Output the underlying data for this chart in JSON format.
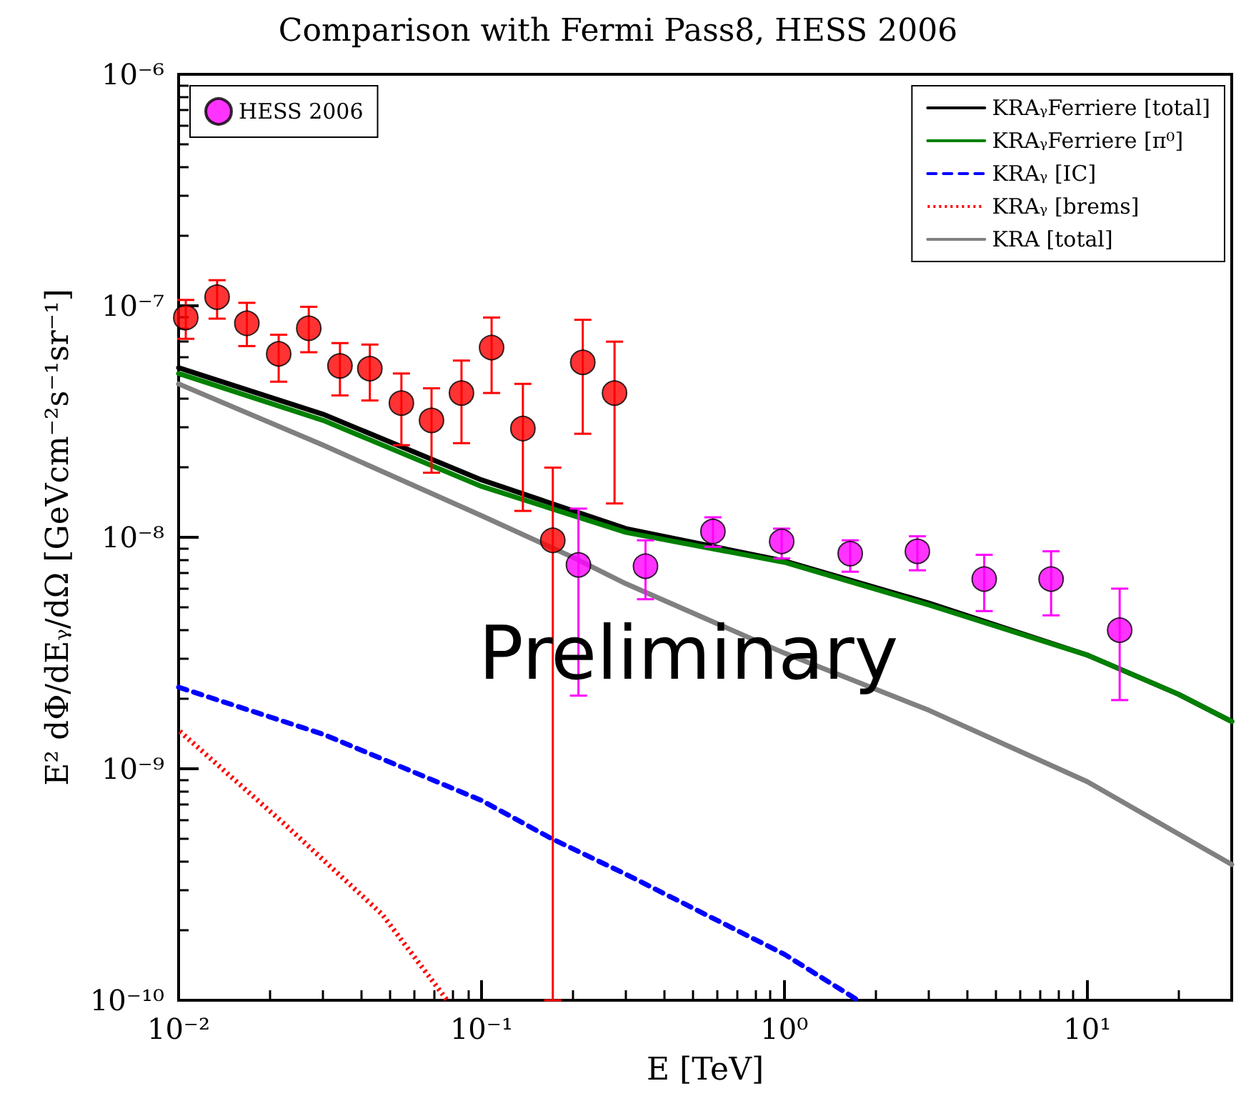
{
  "chart_data": {
    "type": "line",
    "title": "Comparison with Fermi Pass8, HESS 2006",
    "xlabel": "E [TeV]",
    "ylabel": "E² dΦ/dEᵧ/dΩ [GeVcm⁻²s⁻¹sr⁻¹]",
    "log": "xy",
    "grid": false,
    "legend": "top right",
    "marker": "none",
    "xlim": [
      0.01,
      30
    ],
    "xticks": [
      {
        "value": 0.01,
        "label": "10⁻²"
      },
      {
        "value": 0.1,
        "label": "10⁻¹"
      },
      {
        "value": 1,
        "label": "10⁰"
      },
      {
        "value": 10,
        "label": "10¹"
      }
    ],
    "ylim": [
      1e-10,
      1e-06
    ],
    "yticks": [
      {
        "value": 1e-10,
        "label": "10⁻¹⁰"
      },
      {
        "value": 1e-09,
        "label": "10⁻⁹"
      },
      {
        "value": 1e-08,
        "label": "10⁻⁸"
      },
      {
        "value": 1e-07,
        "label": "10⁻⁷"
      },
      {
        "value": 1e-06,
        "label": "10⁻⁶"
      }
    ],
    "annotations": [
      "Preliminary"
    ],
    "series": [
      {
        "name": "KRAᵧFerriere [total]",
        "color": "#000000",
        "line_style": "solid",
        "x": [
          0.01,
          0.03,
          0.1,
          0.3,
          1,
          3,
          10,
          20,
          30
        ],
        "values": [
          5.4e-08,
          3.4e-08,
          1.77e-08,
          1.09e-08,
          7.9e-09,
          5.2e-09,
          3.1e-09,
          2.1e-09,
          1.6e-09
        ]
      },
      {
        "name": "KRAᵧFerriere [π⁰]",
        "color": "#008000",
        "line_style": "solid",
        "x": [
          0.01,
          0.03,
          0.1,
          0.3,
          1,
          3,
          10,
          20,
          30
        ],
        "values": [
          5.1e-08,
          3.2e-08,
          1.66e-08,
          1.05e-08,
          7.8e-09,
          5.1e-09,
          3.1e-09,
          2.1e-09,
          1.6e-09
        ]
      },
      {
        "name": "KRAᵧ [IC]",
        "color": "#0000ff",
        "line_style": "dashed",
        "x": [
          0.01,
          0.03,
          0.1,
          0.17,
          0.3,
          1,
          1.75
        ],
        "values": [
          2.25e-09,
          1.41e-09,
          7.3e-10,
          5e-10,
          3.5e-10,
          1.58e-10,
          1e-10
        ]
      },
      {
        "name": "KRAᵧ [brems]",
        "color": "#ff0000",
        "line_style": "dotted",
        "x": [
          0.0101,
          0.0226,
          0.047,
          0.077
        ],
        "values": [
          1.45e-09,
          5.7e-10,
          2.35e-10,
          1e-10
        ]
      },
      {
        "name": "KRA [total]",
        "color": "#808080",
        "line_style": "solid",
        "x": [
          0.01,
          0.03,
          0.1,
          0.2,
          0.3,
          1,
          3,
          10,
          30
        ],
        "values": [
          4.6e-08,
          2.5e-08,
          1.24e-08,
          8.2e-09,
          6.3e-09,
          3.16e-09,
          1.79e-09,
          8.8e-10,
          3.86e-10
        ]
      },
      {
        "type": "scatter",
        "marker": "circle",
        "color": "#ff0000",
        "x": [
          0.01056,
          0.0134,
          0.0168,
          0.0214,
          0.0269,
          0.0341,
          0.0428,
          0.0544,
          0.0684,
          0.0859,
          0.108,
          0.137,
          0.172,
          0.216,
          0.275
        ],
        "values": [
          8.9e-08,
          1.09e-07,
          8.4e-08,
          6.2e-08,
          8e-08,
          5.5e-08,
          5.35e-08,
          3.8e-08,
          3.2e-08,
          4.2e-08,
          6.6e-08,
          2.95e-08,
          9.7e-09,
          5.7e-08,
          4.2e-08
        ],
        "errors": [
          [
            7.2e-08,
            1.06e-07
          ],
          [
            8.8e-08,
            1.29e-07
          ],
          [
            6.7e-08,
            1.03e-07
          ],
          [
            4.7e-08,
            7.5e-08
          ],
          [
            6.3e-08,
            9.9e-08
          ],
          [
            4.1e-08,
            6.9e-08
          ],
          [
            3.9e-08,
            6.8e-08
          ],
          [
            2.5e-08,
            5.1e-08
          ],
          [
            1.9e-08,
            4.4e-08
          ],
          [
            2.55e-08,
            5.8e-08
          ],
          [
            4.2e-08,
            8.9e-08
          ],
          [
            1.3e-08,
            4.6e-08
          ],
          [
            1e-10,
            2e-08
          ],
          [
            2.8e-08,
            8.7e-08
          ],
          [
            1.4e-08,
            7e-08
          ]
        ]
      },
      {
        "name": "HESS 2006",
        "type": "scatter",
        "marker": "circle",
        "color": "#ff00ff",
        "x": [
          0.209,
          0.348,
          0.581,
          0.98,
          1.65,
          2.75,
          4.57,
          7.6,
          12.8
        ],
        "values": [
          7.6e-09,
          7.5e-09,
          1.06e-08,
          9.6e-09,
          8.5e-09,
          8.7e-09,
          6.6e-09,
          6.6e-09,
          3.97e-09
        ],
        "errors": [
          [
            2.07e-09,
            1.33e-08
          ],
          [
            5.4e-09,
            9.7e-09
          ],
          [
            9.1e-09,
            1.22e-08
          ],
          [
            8.1e-09,
            1.09e-08
          ],
          [
            7.1e-09,
            9.7e-09
          ],
          [
            7.2e-09,
            1.01e-08
          ],
          [
            4.8e-09,
            8.4e-09
          ],
          [
            4.6e-09,
            8.7e-09
          ],
          [
            1.98e-09,
            6e-09
          ]
        ]
      }
    ]
  }
}
